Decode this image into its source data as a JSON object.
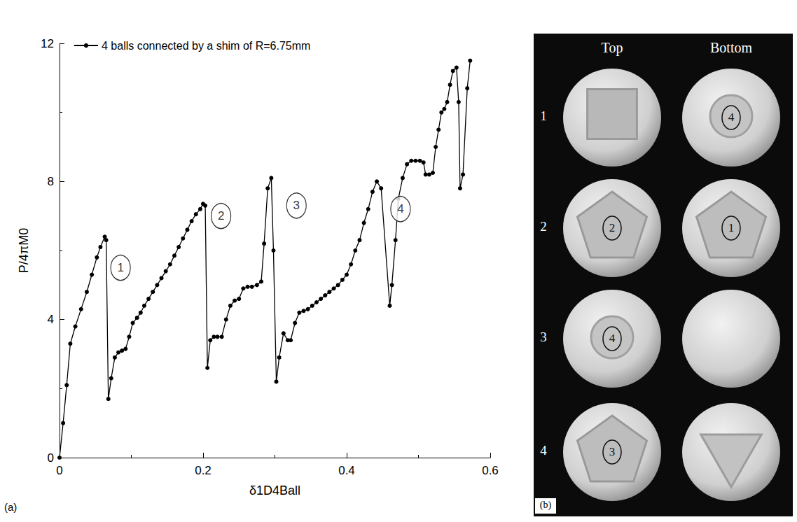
{
  "chart_data": {
    "type": "line",
    "panel_label": "(a)",
    "x_label": "δ1D4Ball",
    "y_label": "P/4πM0",
    "xlim": [
      0,
      0.6
    ],
    "xticks": [
      0,
      0.2,
      0.4,
      0.6
    ],
    "ylim": [
      0,
      12
    ],
    "yticks": [
      0,
      4,
      8,
      12
    ],
    "grid": false,
    "legend": "upper left",
    "series": [
      {
        "name": "4 balls connected by a shim of R=6.75mm",
        "color": "#000000",
        "marker": "circle",
        "line_style": "solid",
        "x": [
          0,
          0.005,
          0.01,
          0.015,
          0.022,
          0.03,
          0.038,
          0.045,
          0.052,
          0.057,
          0.063,
          0.065,
          0.068,
          0.072,
          0.077,
          0.082,
          0.087,
          0.092,
          0.097,
          0.102,
          0.108,
          0.113,
          0.118,
          0.124,
          0.13,
          0.136,
          0.142,
          0.148,
          0.154,
          0.16,
          0.166,
          0.172,
          0.178,
          0.184,
          0.19,
          0.196,
          0.2,
          0.203,
          0.206,
          0.21,
          0.215,
          0.22,
          0.226,
          0.232,
          0.238,
          0.244,
          0.25,
          0.256,
          0.262,
          0.268,
          0.275,
          0.281,
          0.285,
          0.29,
          0.295,
          0.298,
          0.302,
          0.306,
          0.312,
          0.318,
          0.322,
          0.328,
          0.334,
          0.34,
          0.346,
          0.352,
          0.358,
          0.364,
          0.37,
          0.376,
          0.382,
          0.388,
          0.394,
          0.4,
          0.406,
          0.412,
          0.418,
          0.424,
          0.43,
          0.436,
          0.442,
          0.448,
          0.46,
          0.463,
          0.468,
          0.472,
          0.478,
          0.484,
          0.49,
          0.496,
          0.502,
          0.507,
          0.51,
          0.515,
          0.52,
          0.524,
          0.528,
          0.532,
          0.536,
          0.54,
          0.544,
          0.548,
          0.553,
          0.556,
          0.558,
          0.562,
          0.568,
          0.572
        ],
        "values": [
          0,
          1.0,
          2.1,
          3.3,
          3.8,
          4.3,
          4.8,
          5.3,
          5.8,
          6.1,
          6.4,
          6.3,
          1.7,
          2.3,
          2.9,
          3.05,
          3.1,
          3.15,
          3.5,
          3.9,
          4.05,
          4.2,
          4.4,
          4.6,
          4.8,
          5.0,
          5.2,
          5.4,
          5.6,
          5.85,
          6.1,
          6.35,
          6.6,
          6.85,
          7.05,
          7.2,
          7.35,
          7.3,
          2.6,
          3.4,
          3.5,
          3.5,
          3.5,
          4.0,
          4.4,
          4.55,
          4.6,
          4.9,
          4.95,
          4.95,
          5.0,
          5.1,
          6.2,
          7.8,
          8.1,
          6.0,
          2.2,
          2.9,
          3.6,
          3.4,
          3.4,
          3.9,
          4.2,
          4.25,
          4.3,
          4.4,
          4.5,
          4.6,
          4.7,
          4.8,
          4.9,
          5.0,
          5.15,
          5.3,
          5.6,
          6.0,
          6.3,
          6.8,
          7.2,
          7.7,
          8.0,
          7.8,
          4.4,
          5.0,
          6.3,
          7.5,
          8.1,
          8.5,
          8.6,
          8.6,
          8.6,
          8.55,
          8.2,
          8.2,
          8.25,
          9.0,
          9.5,
          10.0,
          10.1,
          10.3,
          10.8,
          11.2,
          11.3,
          10.3,
          7.8,
          8.2,
          10.7,
          11.5
        ]
      }
    ],
    "annotations": [
      {
        "text": "1",
        "x": 0.085,
        "y": 5.5
      },
      {
        "text": "2",
        "x": 0.225,
        "y": 7.0
      },
      {
        "text": "3",
        "x": 0.33,
        "y": 7.3
      },
      {
        "text": "4",
        "x": 0.475,
        "y": 7.2
      }
    ]
  },
  "photo_panel": {
    "panel_label": "(b)",
    "columns": [
      "Top",
      "Bottom"
    ],
    "rows": [
      {
        "label": "1",
        "top": null,
        "bottom": "4"
      },
      {
        "label": "2",
        "top": "2",
        "bottom": "1"
      },
      {
        "label": "3",
        "top": "4",
        "bottom": null
      },
      {
        "label": "4",
        "top": "3",
        "bottom": null
      }
    ]
  }
}
